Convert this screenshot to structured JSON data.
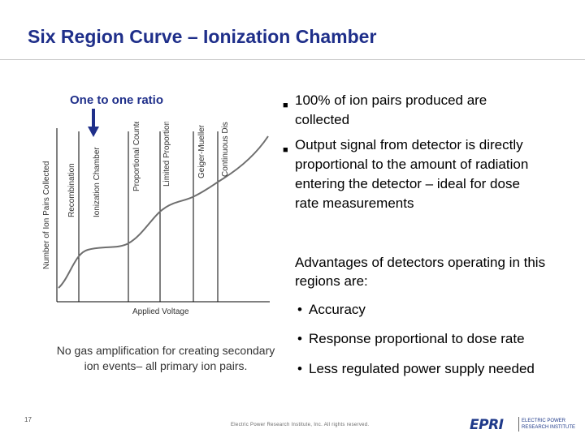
{
  "slide": {
    "title": "Six Region Curve – Ionization Chamber",
    "callout": "One to one ratio",
    "bullets": [
      "100% of ion pairs produced are collected",
      "Output signal from detector is directly proportional to the amount of radiation entering the detector – ideal for dose rate measurements"
    ],
    "advantages_heading": "Advantages of detectors operating in this regions are:",
    "advantages": [
      "Accuracy",
      "Response proportional to dose rate",
      "Less regulated power supply needed"
    ],
    "note": "No gas amplification for creating secondary ion events– all primary ion pairs.",
    "page_number": "17",
    "footer": "Electric Power Research Institute, Inc. All rights reserved.",
    "logo": {
      "mark": "EPRI",
      "line1": "ELECTRIC POWER",
      "line2": "RESEARCH INSTITUTE"
    }
  },
  "colors": {
    "title": "#1f2f8a",
    "arrow": "#1f2f8a",
    "logo": "#1f3a8a"
  },
  "chart_data": {
    "type": "line",
    "xlabel": "Applied Voltage",
    "ylabel": "Number of Ion Pairs Collected",
    "grid": false,
    "regions": [
      "Recombination",
      "Ionization Chamber",
      "Proportional Counter",
      "Limited Proportional",
      "Geiger-Mueller",
      "Continuous Discharge"
    ],
    "curve_shape": "rise - plateau - rise - plateau - rapid rise",
    "icons": {
      "callout": "down-arrow-icon"
    }
  }
}
